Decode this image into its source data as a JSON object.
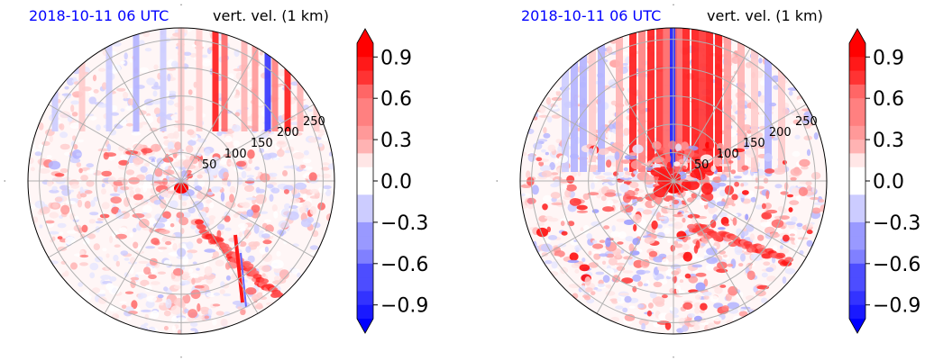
{
  "chart_data": [
    {
      "type": "heatmap",
      "projection": "polar",
      "title_left": "2018-10-11 06 UTC",
      "title_right": "vert. vel. (1 km)",
      "title_left_color": "#0000ff",
      "radial_ticks": [
        "50",
        "100",
        "150",
        "200",
        "250"
      ],
      "radial_tick_values": [
        50,
        100,
        150,
        200,
        250
      ],
      "r_max": 270,
      "colorbar": {
        "ticks": [
          "0.9",
          "0.6",
          "0.3",
          "0.0",
          "−0.3",
          "−0.6",
          "−0.9"
        ],
        "tick_values": [
          0.9,
          0.6,
          0.3,
          0.0,
          -0.3,
          -0.6,
          -0.9
        ],
        "range": [
          -1.0,
          1.0
        ],
        "extend": "both",
        "cmap": "bwr"
      },
      "features": {
        "updraft_streaks_north": "strong",
        "downdraft_streak_north": "narrow",
        "cell_near_center": "strong positive",
        "arc_southeast": "positive band"
      }
    },
    {
      "type": "heatmap",
      "projection": "polar",
      "title_left": "2018-10-11 06 UTC",
      "title_right": "vert. vel. (1 km)",
      "title_left_color": "#0000ff",
      "radial_ticks": [
        "50",
        "100",
        "150",
        "200",
        "250"
      ],
      "radial_tick_values": [
        50,
        100,
        150,
        200,
        250
      ],
      "r_max": 270,
      "colorbar": {
        "ticks": [
          "0.9",
          "0.6",
          "0.3",
          "0.0",
          "−0.3",
          "−0.6",
          "−0.9"
        ],
        "tick_values": [
          0.9,
          0.6,
          0.3,
          0.0,
          -0.3,
          -0.6,
          -0.9
        ],
        "range": [
          -1.0,
          1.0
        ],
        "extend": "both",
        "cmap": "bwr"
      },
      "features": {
        "updraft_streaks_north": "very strong",
        "downdraft_streak_north": "strong",
        "cell_near_center": "strong positive",
        "arc_southeast": "positive band"
      }
    }
  ],
  "colors": {
    "positive_max": "#ff0000",
    "negative_max": "#0000ff",
    "neutral": "#ffffff",
    "grid": "#b0b0b0",
    "title_left": "#0000ff"
  }
}
